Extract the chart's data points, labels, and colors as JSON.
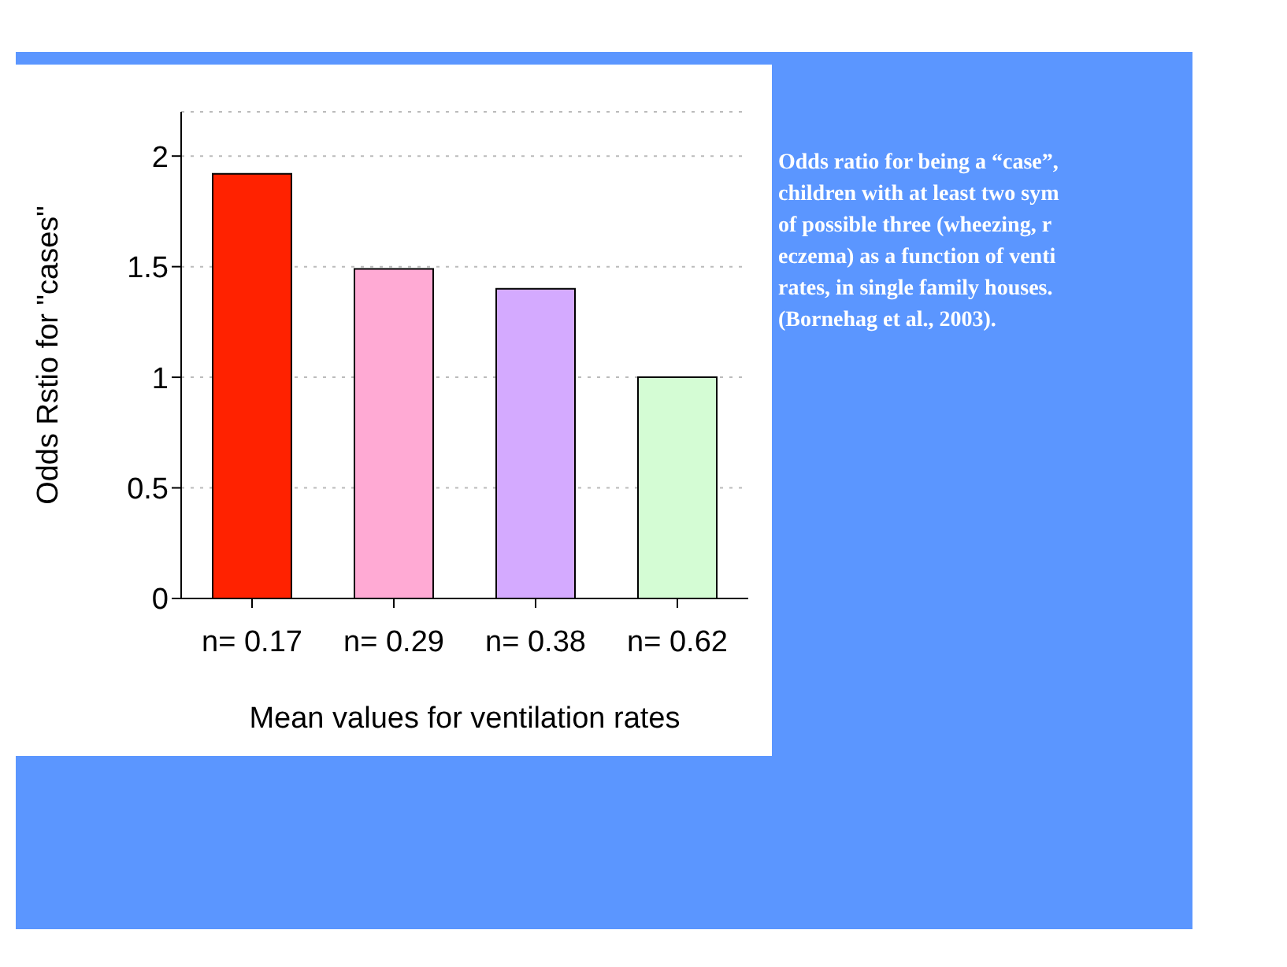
{
  "chart_data": {
    "type": "bar",
    "categories": [
      "n= 0.17",
      "n= 0.29",
      "n= 0.38",
      "n= 0.62"
    ],
    "values": [
      1.92,
      1.49,
      1.4,
      1.0
    ],
    "colors": [
      "#ff2200",
      "#ffaad4",
      "#d4aaff",
      "#d4fcd4"
    ],
    "xlabel": "Mean values for ventilation rates",
    "ylabel": "Odds Rstio for \"cases\"",
    "ylim": [
      0,
      2.2
    ],
    "yticks": [
      0,
      0.5,
      1,
      1.5,
      2
    ],
    "grid": "y",
    "annotations": [
      "Odds ratio for being a “case”,",
      "children with at least two sym",
      "of possible three (wheezing, r",
      "eczema) as a function of  venti",
      "rates, in single family houses.",
      "(Bornehag et al., 2003)."
    ]
  }
}
